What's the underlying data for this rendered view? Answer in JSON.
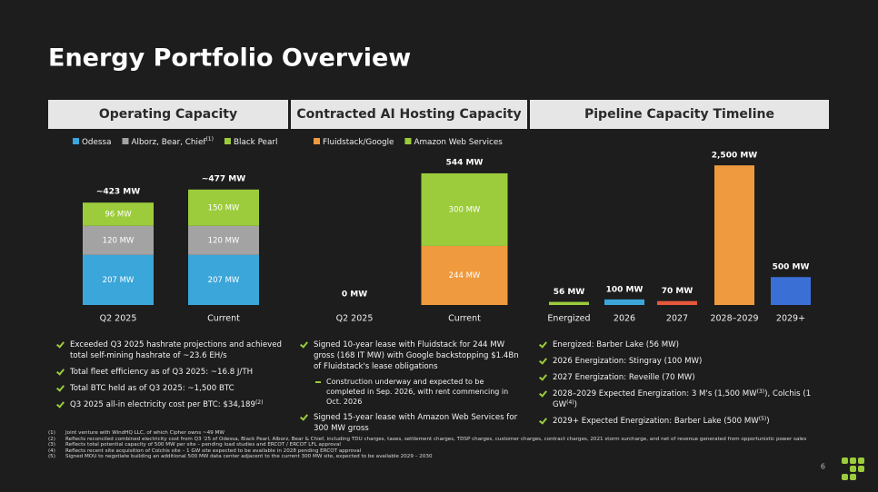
{
  "title": "Energy Portfolio Overview",
  "chart_data": [
    {
      "type": "bar",
      "stacked": true,
      "title": "Operating Capacity",
      "categories": [
        "Q2 2025",
        "Current"
      ],
      "series": [
        {
          "name": "Odessa",
          "color": "#3ba6d9",
          "values": [
            207,
            207
          ],
          "value_labels": [
            "207 MW",
            "207 MW"
          ]
        },
        {
          "name": "Alborz, Bear, Chief",
          "footnote": "(1)",
          "color": "#a3a3a3",
          "values": [
            120,
            120
          ],
          "value_labels": [
            "120 MW",
            "120 MW"
          ]
        },
        {
          "name": "Black Pearl",
          "color": "#9ccc3c",
          "values": [
            96,
            150
          ],
          "value_labels": [
            "96 MW",
            "150 MW"
          ]
        }
      ],
      "total_labels": [
        "~423 MW",
        "~477 MW"
      ],
      "ylim": [
        0,
        600
      ]
    },
    {
      "type": "bar",
      "stacked": true,
      "title": "Contracted AI Hosting Capacity",
      "categories": [
        "Q2 2025",
        "Current"
      ],
      "series": [
        {
          "name": "Fluidstack/Google",
          "color": "#ef9a3e",
          "values": [
            0,
            244
          ],
          "value_labels": [
            null,
            "244 MW"
          ]
        },
        {
          "name": "Amazon Web Services",
          "color": "#9ccc3c",
          "values": [
            0,
            300
          ],
          "value_labels": [
            null,
            "300 MW"
          ]
        }
      ],
      "total_labels": [
        "0 MW",
        "544 MW"
      ],
      "ylim": [
        0,
        600
      ]
    },
    {
      "type": "bar",
      "title": "Pipeline Capacity Timeline",
      "categories": [
        "Energized",
        "2026",
        "2027",
        "2028–2029",
        "2029+"
      ],
      "values": [
        56,
        100,
        70,
        2500,
        500
      ],
      "value_labels": [
        "56 MW",
        "100 MW",
        "70 MW",
        "2,500 MW",
        "500 MW"
      ],
      "colors": [
        "#9ccc3c",
        "#3ba6d9",
        "#e8583c",
        "#ef9a3e",
        "#3a70d6"
      ],
      "ylim": [
        0,
        2600
      ]
    }
  ],
  "bullets": [
    [
      {
        "parts": [
          "Exceeded Q3 2025 hashrate projections and achieved total self-mining hashrate of ~23.6 EH/s"
        ]
      },
      {
        "parts": [
          "Total fleet efficiency as of Q3 2025: ~16.8 J/TH"
        ]
      },
      {
        "parts": [
          "Total BTC held as of Q3 2025: ~1,500 BTC"
        ]
      },
      {
        "parts": [
          "Q3 2025 all-in electricity cost per BTC: $34,189",
          {
            "sup": "(2)"
          }
        ]
      }
    ],
    [
      {
        "parts": [
          "Signed 10-year lease with Fluidstack for 244 MW gross (168 IT MW) with Google backstopping $1.4Bn of Fluidstack's lease obligations"
        ],
        "subitems": [
          {
            "parts": [
              "Construction underway and expected to be completed in Sep. 2026, with rent commencing in Oct. 2026"
            ]
          }
        ]
      },
      {
        "parts": [
          "Signed 15-year lease with Amazon Web Services for 300 MW gross"
        ]
      }
    ],
    [
      {
        "parts": [
          "Energized: Barber Lake (56 MW)"
        ]
      },
      {
        "parts": [
          "2026 Energization: Stingray (100 MW)"
        ]
      },
      {
        "parts": [
          "2027 Energization: Reveille (70 MW)"
        ]
      },
      {
        "parts": [
          "2028–2029 Expected Energization: 3 M's (1,500 MW",
          {
            "sup": "(3)"
          },
          "), Colchis (1 GW",
          {
            "sup": "(4)"
          },
          ")"
        ]
      },
      {
        "parts": [
          "2029+ Expected Energization: Barber Lake (500 MW",
          {
            "sup": "(5)"
          },
          ")"
        ]
      }
    ]
  ],
  "footnotes": [
    {
      "num": "(1)",
      "text": "Joint venture with WindHQ LLC, of which Cipher owns ~49 MW"
    },
    {
      "num": "(2)",
      "text": "Reflects reconciled combined electricity cost from Q3 '25 of Odessa, Black Pearl, Alborz, Bear & Chief, including TDU charges, taxes, settlement charges, TDSP charges, customer charges, contract charges, 2021 storm surcharge, and net of revenue generated from opportunistic power sales"
    },
    {
      "num": "(3)",
      "text": "Reflects total potential capacity of 500 MW per site – pending load studies and ERCOT / ERCOT LFL approval"
    },
    {
      "num": "(4)",
      "text": "Reflects recent site acquisition of Colchis site – 1 GW site expected to be available in 2028 pending ERCOT approval"
    },
    {
      "num": "(5)",
      "text": "Signed MOU to negotiate building an additional 500 MW data center adjacent to the current 300 MW site, expected to be available 2029 – 2030"
    }
  ],
  "page_number": "6"
}
